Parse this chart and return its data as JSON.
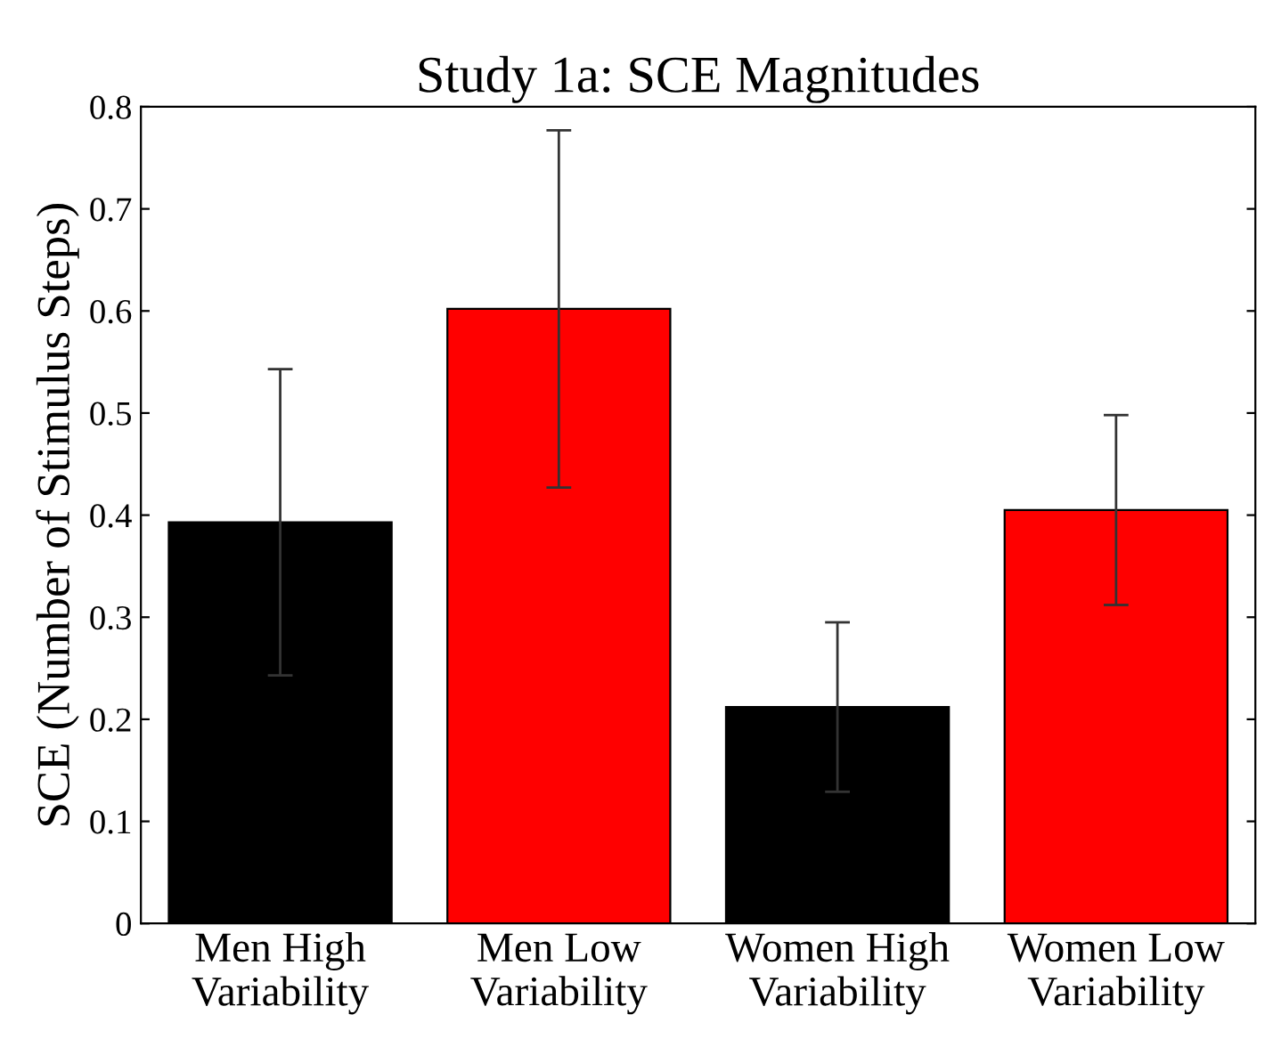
{
  "chart_data": {
    "type": "bar",
    "title": "Study 1a: SCE Magnitudes",
    "ylabel": "SCE (Number of Stimulus Steps)",
    "categories": [
      "Men High\nVariability",
      "Men Low\nVariability",
      "Women High\nVariability",
      "Women Low\nVariability"
    ],
    "values": [
      0.393,
      0.602,
      0.212,
      0.405
    ],
    "colors": [
      "#000000",
      "#ff0000",
      "#000000",
      "#ff0000"
    ],
    "errors": [
      0.15,
      0.175,
      0.083,
      0.093
    ],
    "ylim": [
      0,
      0.8
    ],
    "yticks": [
      0,
      0.1,
      0.2,
      0.3,
      0.4,
      0.5,
      0.6,
      0.7,
      0.8
    ],
    "grid": false
  }
}
